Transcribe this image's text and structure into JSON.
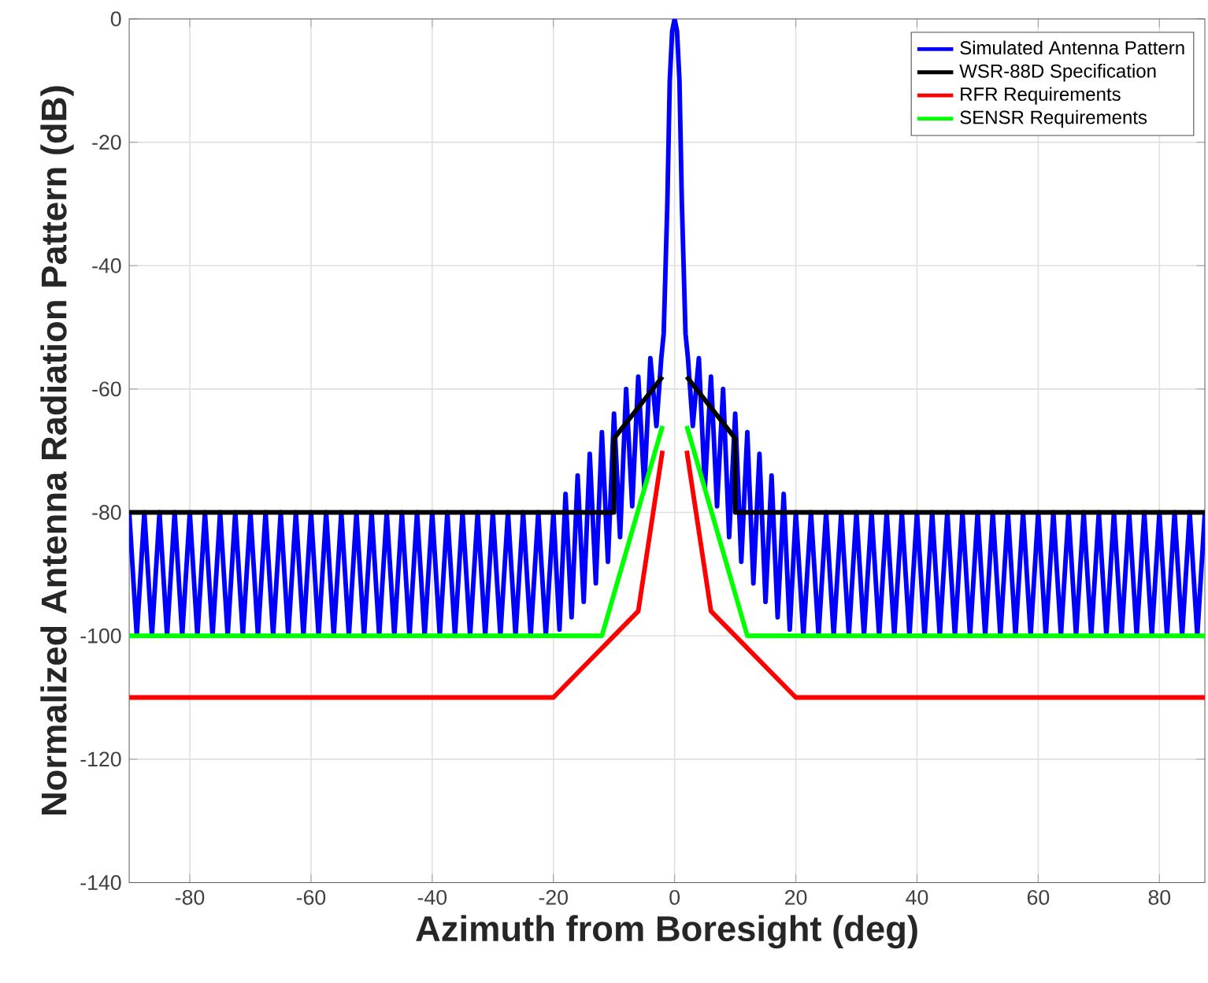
{
  "chart_data": {
    "type": "line",
    "xlabel": "Azimuth from Boresight (deg)",
    "ylabel": "Normalized Antenna Radiation Pattern (dB)",
    "xlim": [
      -90,
      87.5
    ],
    "ylim": [
      -140,
      0
    ],
    "xticks": [
      -80,
      -60,
      -40,
      -20,
      0,
      20,
      40,
      60,
      80
    ],
    "yticks": [
      -140,
      -120,
      -100,
      -80,
      -60,
      -40,
      -20,
      0
    ],
    "grid": true,
    "legend": "top right",
    "marker": "none",
    "line_style": "solid",
    "series": [
      {
        "name": "Simulated Antenna Pattern",
        "color": "#0000ff",
        "x": [
          -90,
          -88.75,
          -87.5,
          -86.25,
          -85,
          -83.75,
          -82.5,
          -81.25,
          -80,
          -78.75,
          -77.5,
          -76.25,
          -75,
          -73.75,
          -72.5,
          -71.25,
          -70,
          -68.75,
          -67.5,
          -66.25,
          -65,
          -63.75,
          -62.5,
          -61.25,
          -60,
          -58.75,
          -57.5,
          -56.25,
          -55,
          -53.75,
          -52.5,
          -51.25,
          -50,
          -48.75,
          -47.5,
          -46.25,
          -45,
          -43.75,
          -42.5,
          -41.25,
          -40,
          -38.75,
          -37.5,
          -36.25,
          -35,
          -33.75,
          -32.5,
          -31.25,
          -30,
          -28.75,
          -27.5,
          -26.25,
          -25,
          -23.75,
          -22.5,
          -21.25,
          -20,
          -19,
          -18,
          -17,
          -16,
          -15,
          -14,
          -13,
          -12,
          -11,
          -10,
          -9,
          -8,
          -7,
          -6,
          -5,
          -4,
          -3,
          -2.2,
          -1.8,
          -1.2,
          -0.8,
          -0.4,
          0,
          0.4,
          0.8,
          1.2,
          1.8,
          2.2,
          3,
          4,
          5,
          6,
          7,
          8,
          9,
          10,
          11,
          12,
          13,
          14,
          15,
          16,
          17,
          18,
          19,
          20,
          21.25,
          22.5,
          23.75,
          25,
          26.25,
          27.5,
          28.75,
          30,
          31.25,
          32.5,
          33.75,
          35,
          36.25,
          37.5,
          38.75,
          40,
          41.25,
          42.5,
          43.75,
          45,
          46.25,
          47.5,
          48.75,
          50,
          51.25,
          52.5,
          53.75,
          55,
          56.25,
          57.5,
          58.75,
          60,
          61.25,
          62.5,
          63.75,
          65,
          66.25,
          67.5,
          68.75,
          70,
          71.25,
          72.5,
          73.75,
          75,
          76.25,
          77.5,
          78.75,
          80,
          81.25,
          82.5,
          83.75,
          85,
          86.25,
          87.5
        ],
        "values": [
          -80,
          -100,
          -80,
          -100,
          -80,
          -100,
          -80,
          -100,
          -80,
          -100,
          -80,
          -100,
          -80,
          -100,
          -80,
          -100,
          -80,
          -100,
          -80,
          -100,
          -80,
          -100,
          -80,
          -100,
          -80,
          -100,
          -80,
          -100,
          -80,
          -100,
          -80,
          -100,
          -80,
          -100,
          -80,
          -100,
          -80,
          -100,
          -80,
          -100,
          -80,
          -100,
          -80,
          -100,
          -80,
          -100,
          -80,
          -100,
          -80,
          -100,
          -80,
          -100,
          -80,
          -100,
          -80,
          -100,
          -80,
          -99,
          -77,
          -97,
          -74,
          -94.5,
          -70.5,
          -91.5,
          -67,
          -88,
          -64,
          -84,
          -60,
          -79,
          -58,
          -76,
          -55,
          -66,
          -55,
          -51,
          -30,
          -10,
          -2,
          0,
          -2,
          -10,
          -30,
          -51,
          -55,
          -66,
          -55,
          -76,
          -58,
          -79,
          -60,
          -84,
          -64,
          -88,
          -67,
          -91.5,
          -70.5,
          -94.5,
          -74,
          -97,
          -77,
          -99,
          -80,
          -100,
          -80,
          -100,
          -80,
          -100,
          -80,
          -100,
          -80,
          -100,
          -80,
          -100,
          -80,
          -100,
          -80,
          -100,
          -80,
          -100,
          -80,
          -100,
          -80,
          -100,
          -80,
          -100,
          -80,
          -100,
          -80,
          -100,
          -80,
          -100,
          -80,
          -100,
          -80,
          -100,
          -80,
          -100,
          -80,
          -100,
          -80,
          -100,
          -80,
          -100,
          -80,
          -100,
          -80,
          -100,
          -80,
          -100,
          -80,
          -100,
          -80,
          -100,
          -80,
          -100,
          -80
        ]
      },
      {
        "name": "WSR-88D Specification",
        "color": "#000000",
        "x": [
          -90,
          -10,
          -10,
          -2,
          0,
          2,
          10,
          10,
          87.5
        ],
        "values": [
          -80,
          -80,
          -68,
          -58,
          null,
          -58,
          -68,
          -80,
          -80
        ]
      },
      {
        "name": "RFR Requirements",
        "color": "#ff0000",
        "x": [
          -90,
          -20,
          -6,
          -2,
          0,
          2,
          6,
          20,
          87.5
        ],
        "values": [
          -110,
          -110,
          -96,
          -70,
          null,
          -70,
          -96,
          -110,
          -110
        ]
      },
      {
        "name": "SENSR Requirements",
        "color": "#00ff00",
        "x": [
          -90,
          -12,
          -2,
          0,
          2,
          12,
          87.5
        ],
        "values": [
          -100,
          -100,
          -66,
          null,
          -66,
          -100,
          -100
        ]
      }
    ]
  }
}
